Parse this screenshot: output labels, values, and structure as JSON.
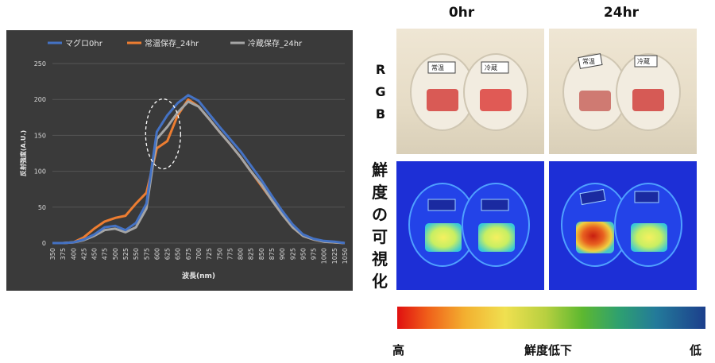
{
  "chart_data": {
    "type": "line",
    "xlabel": "波長(nm)",
    "ylabel": "反射強度(A.U.)",
    "ylim": [
      0,
      250
    ],
    "yticks": [
      0,
      50,
      100,
      150,
      200,
      250
    ],
    "x": [
      350,
      375,
      400,
      425,
      450,
      475,
      500,
      525,
      550,
      575,
      600,
      625,
      650,
      675,
      700,
      725,
      750,
      775,
      800,
      825,
      850,
      875,
      900,
      925,
      950,
      975,
      1000,
      1025,
      1050
    ],
    "legend_position": "top",
    "grid": true,
    "series": [
      {
        "name": "マグロ0hr",
        "color": "#4472c4",
        "values": [
          0,
          0,
          1,
          5,
          12,
          22,
          24,
          18,
          28,
          55,
          155,
          178,
          195,
          206,
          198,
          180,
          162,
          145,
          128,
          108,
          88,
          66,
          45,
          26,
          12,
          6,
          3,
          2,
          0
        ]
      },
      {
        "name": "常温保存_24hr",
        "color": "#ed7d31",
        "values": [
          0,
          0,
          1,
          8,
          20,
          30,
          35,
          38,
          55,
          70,
          132,
          142,
          178,
          200,
          190,
          173,
          155,
          138,
          120,
          100,
          80,
          60,
          40,
          22,
          10,
          5,
          2,
          1,
          0
        ]
      },
      {
        "name": "冷蔵保存_24hr",
        "color": "#a5a5a5",
        "values": [
          0,
          0,
          1,
          4,
          10,
          18,
          20,
          15,
          22,
          48,
          145,
          162,
          182,
          197,
          190,
          173,
          155,
          138,
          120,
          100,
          82,
          60,
          40,
          22,
          10,
          5,
          2,
          1,
          0
        ]
      }
    ]
  },
  "headers": {
    "col1": "0hr",
    "col2": "24hr"
  },
  "row_labels": {
    "rgb": [
      "R",
      "G",
      "B"
    ],
    "hs": [
      "鮮",
      "度",
      "の",
      "可",
      "視",
      "化"
    ]
  },
  "sample_tags": {
    "room": "常温",
    "fridge": "冷蔵"
  },
  "colorbar": {
    "left": "高",
    "center": "鮮度低下",
    "right": "低"
  }
}
